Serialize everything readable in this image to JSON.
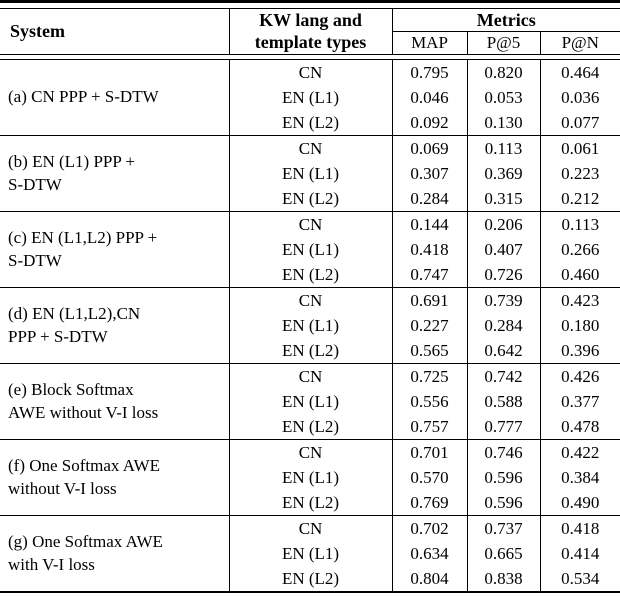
{
  "colors": {
    "text": "#000000",
    "background": "#ffffff",
    "rule": "#000000"
  },
  "table": {
    "header": {
      "system": "System",
      "kw_lang_line1": "KW lang and",
      "kw_lang_line2": "template types",
      "metrics": "Metrics",
      "metric_columns": [
        "MAP",
        "P@5",
        "P@N"
      ]
    },
    "groups": [
      {
        "system_lines": [
          "(a) CN PPP + S-DTW"
        ],
        "rows": [
          {
            "kw": "CN",
            "values": [
              "0.795",
              "0.820",
              "0.464"
            ]
          },
          {
            "kw": "EN (L1)",
            "values": [
              "0.046",
              "0.053",
              "0.036"
            ]
          },
          {
            "kw": "EN (L2)",
            "values": [
              "0.092",
              "0.130",
              "0.077"
            ]
          }
        ]
      },
      {
        "system_lines": [
          "(b) EN (L1) PPP +",
          "S-DTW"
        ],
        "rows": [
          {
            "kw": "CN",
            "values": [
              "0.069",
              "0.113",
              "0.061"
            ]
          },
          {
            "kw": "EN (L1)",
            "values": [
              "0.307",
              "0.369",
              "0.223"
            ]
          },
          {
            "kw": "EN (L2)",
            "values": [
              "0.284",
              "0.315",
              "0.212"
            ]
          }
        ]
      },
      {
        "system_lines": [
          "(c) EN (L1,L2) PPP +",
          "S-DTW"
        ],
        "rows": [
          {
            "kw": "CN",
            "values": [
              "0.144",
              "0.206",
              "0.113"
            ]
          },
          {
            "kw": "EN (L1)",
            "values": [
              "0.418",
              "0.407",
              "0.266"
            ]
          },
          {
            "kw": "EN (L2)",
            "values": [
              "0.747",
              "0.726",
              "0.460"
            ]
          }
        ]
      },
      {
        "system_lines": [
          "(d) EN (L1,L2),CN",
          "PPP + S-DTW"
        ],
        "rows": [
          {
            "kw": "CN",
            "values": [
              "0.691",
              "0.739",
              "0.423"
            ]
          },
          {
            "kw": "EN (L1)",
            "values": [
              "0.227",
              "0.284",
              "0.180"
            ]
          },
          {
            "kw": "EN (L2)",
            "values": [
              "0.565",
              "0.642",
              "0.396"
            ]
          }
        ]
      },
      {
        "system_lines": [
          "(e) Block Softmax",
          "AWE without V-I loss"
        ],
        "rows": [
          {
            "kw": "CN",
            "values": [
              "0.725",
              "0.742",
              "0.426"
            ]
          },
          {
            "kw": "EN (L1)",
            "values": [
              "0.556",
              "0.588",
              "0.377"
            ]
          },
          {
            "kw": "EN (L2)",
            "values": [
              "0.757",
              "0.777",
              "0.478"
            ]
          }
        ]
      },
      {
        "system_lines": [
          "(f) One Softmax AWE",
          "without V-I loss"
        ],
        "rows": [
          {
            "kw": "CN",
            "values": [
              "0.701",
              "0.746",
              "0.422"
            ]
          },
          {
            "kw": "EN (L1)",
            "values": [
              "0.570",
              "0.596",
              "0.384"
            ]
          },
          {
            "kw": "EN (L2)",
            "values": [
              "0.769",
              "0.596",
              "0.490"
            ]
          }
        ]
      },
      {
        "system_lines": [
          "(g) One Softmax AWE",
          "with V-I loss"
        ],
        "rows": [
          {
            "kw": "CN",
            "values": [
              "0.702",
              "0.737",
              "0.418"
            ]
          },
          {
            "kw": "EN (L1)",
            "values": [
              "0.634",
              "0.665",
              "0.414"
            ]
          },
          {
            "kw": "EN (L2)",
            "values": [
              "0.804",
              "0.838",
              "0.534"
            ]
          }
        ]
      }
    ]
  }
}
